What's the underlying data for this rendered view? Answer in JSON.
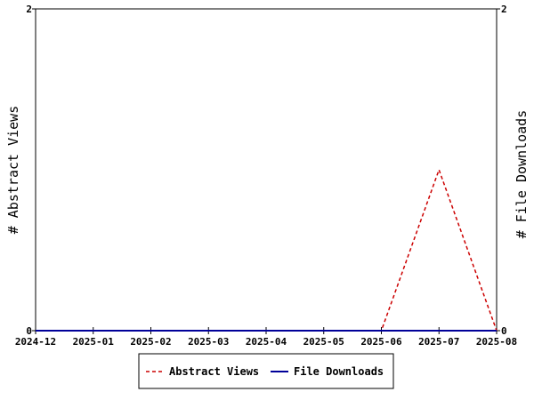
{
  "chart_data": {
    "type": "line",
    "categories": [
      "2024-12",
      "2025-01",
      "2025-02",
      "2025-03",
      "2025-04",
      "2025-05",
      "2025-06",
      "2025-07",
      "2025-08"
    ],
    "series": [
      {
        "name": "Abstract Views",
        "values": [
          0,
          0,
          0,
          0,
          0,
          0,
          0,
          1,
          0
        ],
        "color": "#cc0000",
        "style": "dashed",
        "axis": "left"
      },
      {
        "name": "File Downloads",
        "values": [
          0,
          0,
          0,
          0,
          0,
          0,
          0,
          0,
          0
        ],
        "color": "#000099",
        "style": "solid",
        "axis": "right"
      }
    ],
    "ylabel": "# Abstract Views",
    "y2label": "# File Downloads",
    "ylim": [
      0,
      2
    ],
    "y2lim": [
      0,
      2
    ],
    "yticks": [
      "0",
      "2"
    ],
    "y2ticks": [
      "0",
      "2"
    ],
    "grid": false,
    "legend_position": "bottom-center"
  }
}
